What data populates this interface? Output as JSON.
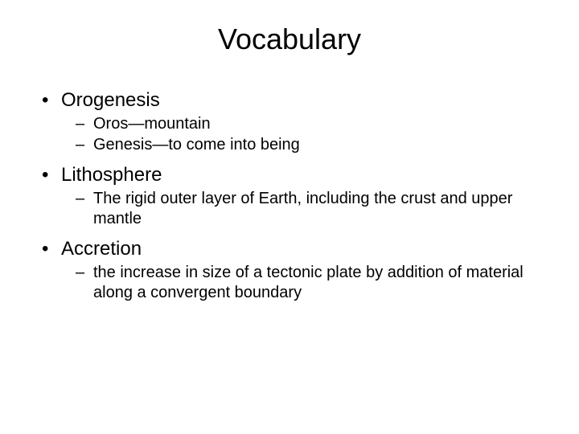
{
  "slide": {
    "title": "Vocabulary",
    "title_fontsize": 36,
    "body_fontsize_level1": 24,
    "body_fontsize_level2": 20,
    "background_color": "#ffffff",
    "text_color": "#000000",
    "bullet_level1_char": "•",
    "bullet_level2_char": "–",
    "items": [
      {
        "term": "Orogenesis",
        "subitems": [
          "Oros—mountain",
          "Genesis—to come into being"
        ]
      },
      {
        "term": "Lithosphere",
        "subitems": [
          "The rigid outer layer of Earth, including the crust and upper mantle"
        ]
      },
      {
        "term": "Accretion",
        "subitems": [
          "the increase in size of a tectonic plate by addition of material along a convergent boundary"
        ]
      }
    ]
  }
}
